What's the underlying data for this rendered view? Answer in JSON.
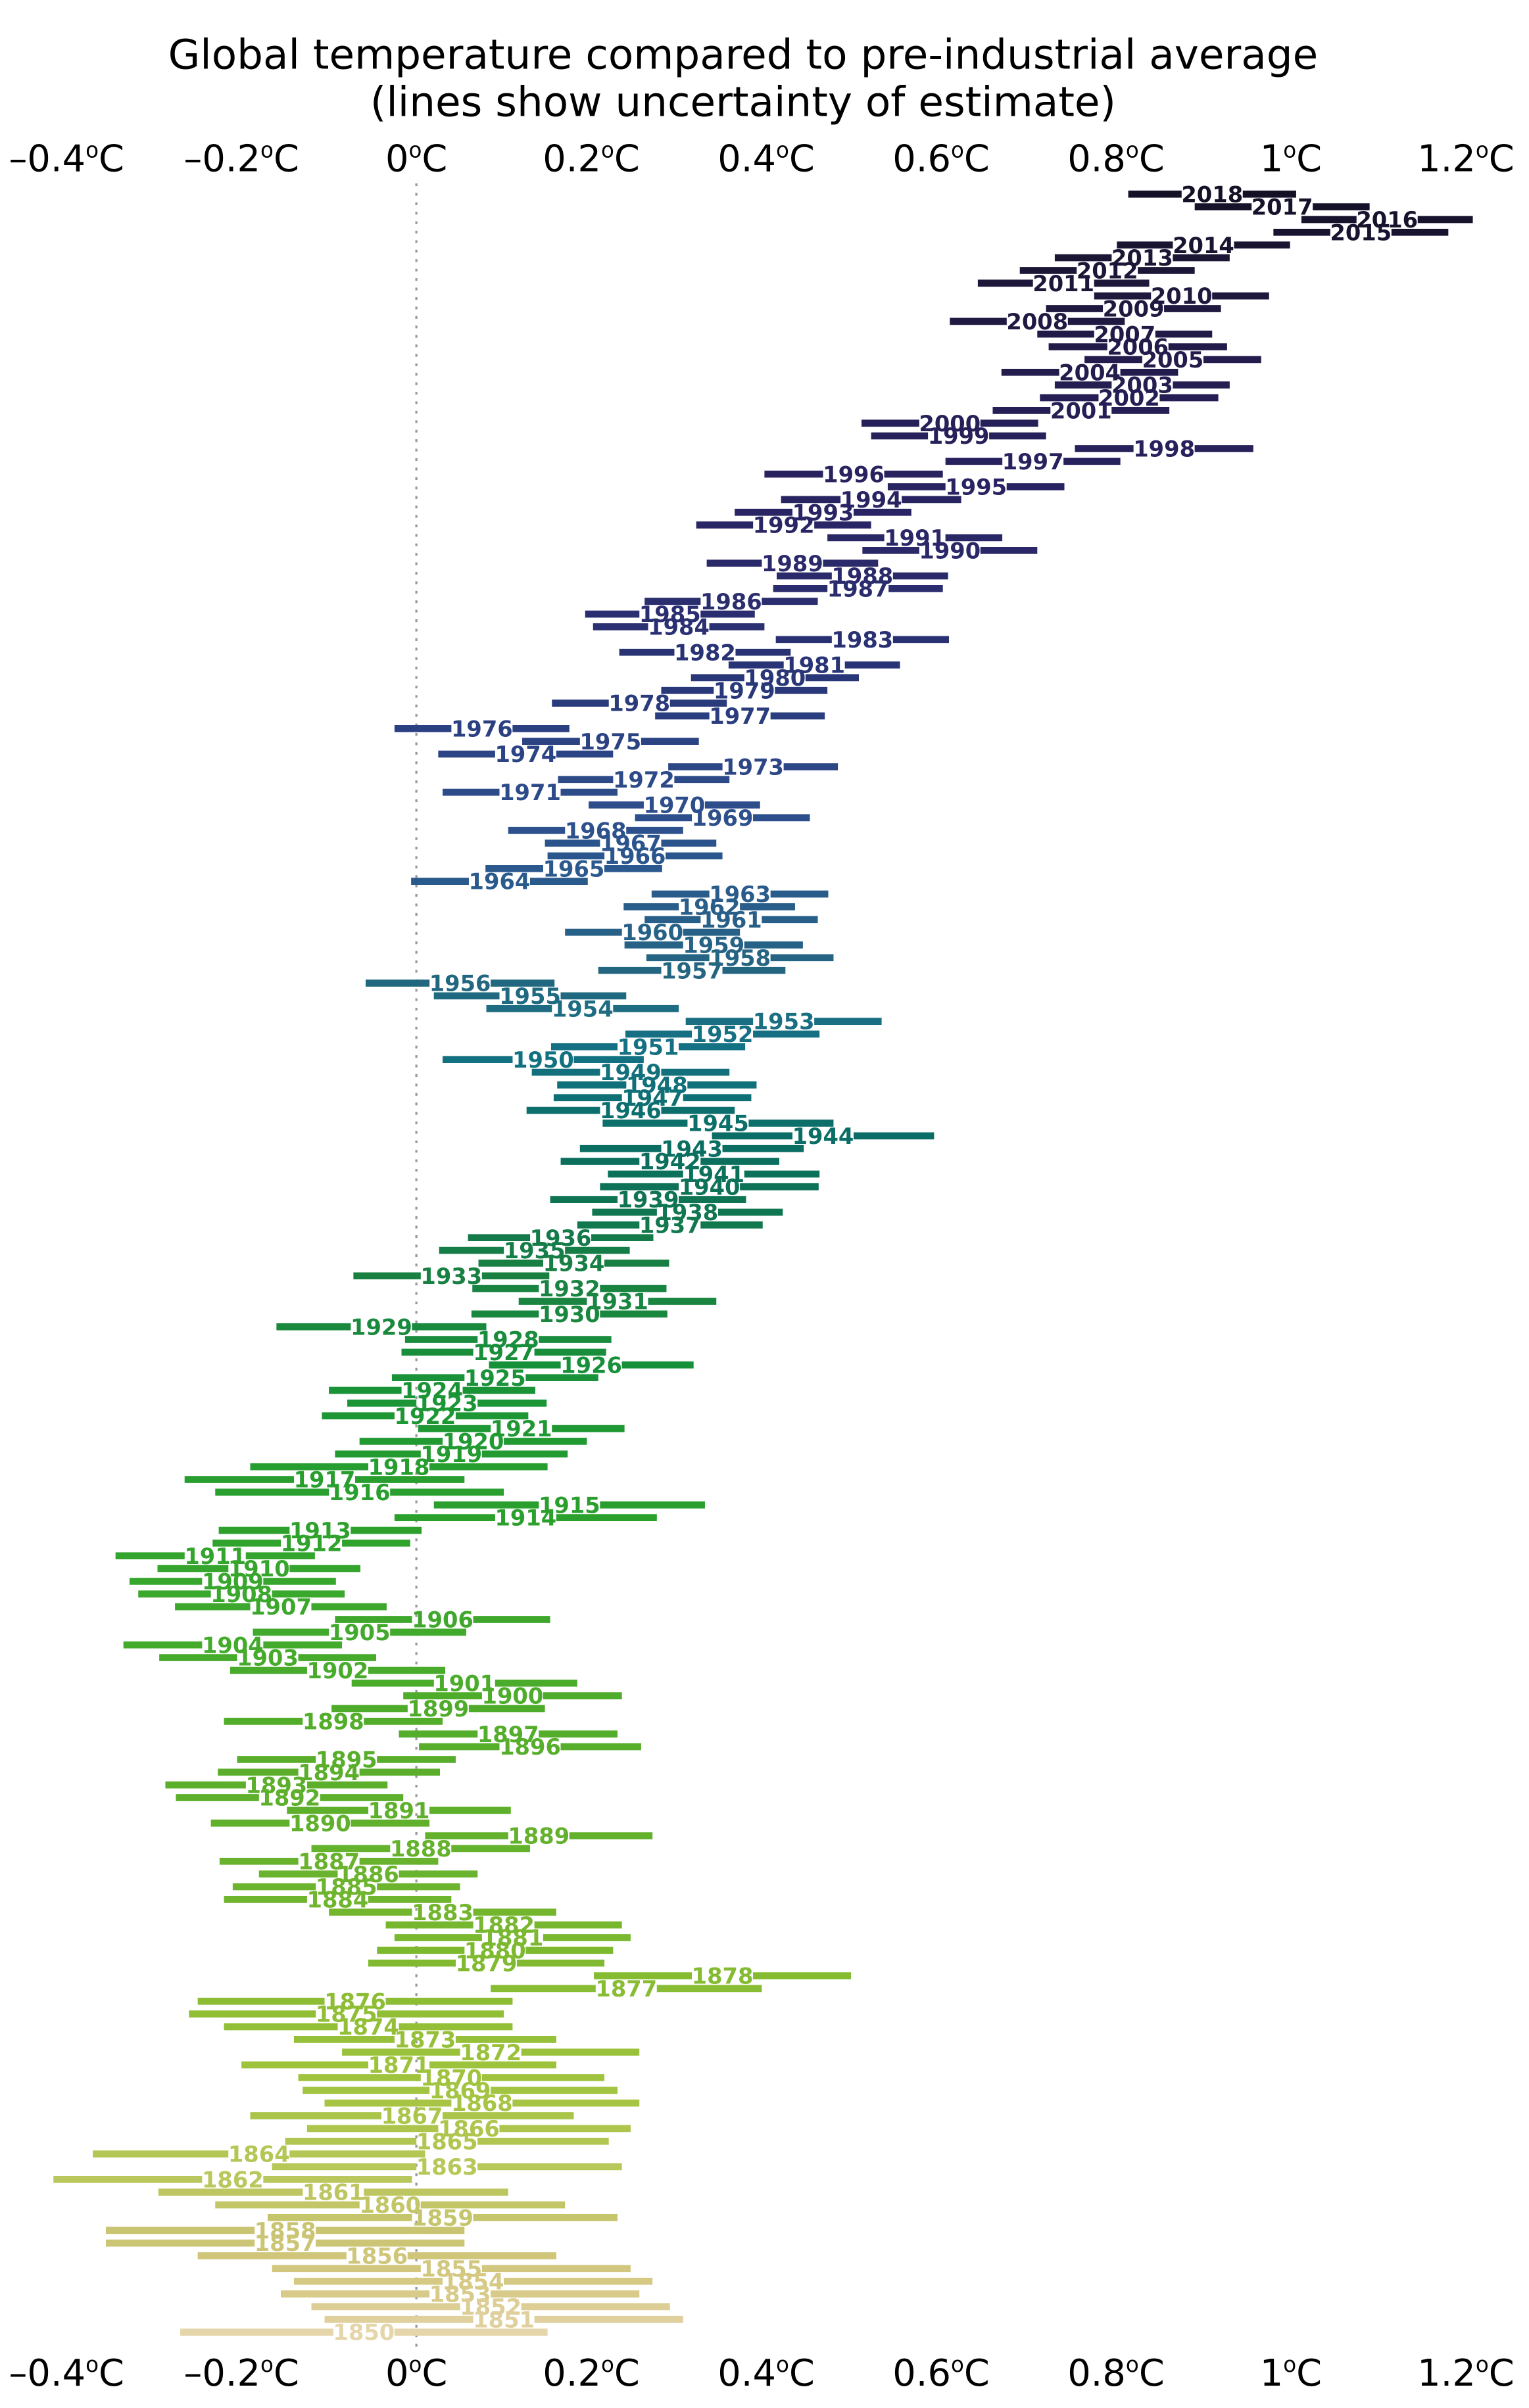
{
  "chart_data": {
    "type": "scatter",
    "variant": "horizontal-uncertainty-interval-plot",
    "title": "Global temperature compared to pre-industrial average",
    "subtitle": "(lines show uncertainty of estimate)",
    "xlabel": "",
    "ylabel": "",
    "unit": "°C",
    "xlim": [
      -0.47,
      1.26
    ],
    "grid": "zero-line-only",
    "zero_line_color": "#999999",
    "background_color": "#ffffff",
    "axis_ticks": [
      {
        "value": -0.4,
        "label": "–0.4"
      },
      {
        "value": -0.2,
        "label": "–0.2"
      },
      {
        "value": 0,
        "label": "0"
      },
      {
        "value": 0.2,
        "label": "0.2"
      },
      {
        "value": 0.4,
        "label": "0.4"
      },
      {
        "value": 0.6,
        "label": "0.6"
      },
      {
        "value": 0.8,
        "label": "0.8"
      },
      {
        "value": 1,
        "label": "1"
      },
      {
        "value": 1.2,
        "label": "1.2"
      }
    ],
    "axis_positions": [
      "top",
      "bottom"
    ],
    "columns": [
      "year",
      "anomaly_c",
      "uncertainty_half_width_c"
    ],
    "points": [
      [
        1850,
        -0.06,
        0.21
      ],
      [
        1851,
        0.1,
        0.205
      ],
      [
        1852,
        0.085,
        0.205
      ],
      [
        1853,
        0.05,
        0.205
      ],
      [
        1854,
        0.065,
        0.205
      ],
      [
        1855,
        0.04,
        0.205
      ],
      [
        1856,
        -0.045,
        0.205
      ],
      [
        1857,
        -0.15,
        0.205
      ],
      [
        1858,
        -0.15,
        0.205
      ],
      [
        1859,
        0.03,
        0.2
      ],
      [
        1860,
        -0.03,
        0.2
      ],
      [
        1861,
        -0.095,
        0.2
      ],
      [
        1862,
        -0.21,
        0.205
      ],
      [
        1863,
        0.035,
        0.2
      ],
      [
        1864,
        -0.18,
        0.19
      ],
      [
        1865,
        0.035,
        0.185
      ],
      [
        1866,
        0.06,
        0.185
      ],
      [
        1867,
        -0.005,
        0.185
      ],
      [
        1868,
        0.075,
        0.18
      ],
      [
        1869,
        0.05,
        0.18
      ],
      [
        1870,
        0.04,
        0.175
      ],
      [
        1871,
        -0.02,
        0.18
      ],
      [
        1872,
        0.085,
        0.17
      ],
      [
        1873,
        0.01,
        0.15
      ],
      [
        1874,
        -0.055,
        0.165
      ],
      [
        1875,
        -0.08,
        0.18
      ],
      [
        1876,
        -0.07,
        0.18
      ],
      [
        1877,
        0.24,
        0.155
      ],
      [
        1878,
        0.35,
        0.147
      ],
      [
        1879,
        0.08,
        0.135
      ],
      [
        1880,
        0.09,
        0.135
      ],
      [
        1881,
        0.11,
        0.135
      ],
      [
        1882,
        0.1,
        0.135
      ],
      [
        1883,
        0.03,
        0.13
      ],
      [
        1884,
        -0.09,
        0.13
      ],
      [
        1885,
        -0.08,
        0.13
      ],
      [
        1886,
        -0.055,
        0.125
      ],
      [
        1887,
        -0.1,
        0.125
      ],
      [
        1888,
        0.005,
        0.125
      ],
      [
        1889,
        0.14,
        0.13
      ],
      [
        1890,
        -0.11,
        0.125
      ],
      [
        1891,
        -0.02,
        0.128
      ],
      [
        1892,
        -0.145,
        0.13
      ],
      [
        1893,
        -0.16,
        0.127
      ],
      [
        1894,
        -0.1,
        0.127
      ],
      [
        1895,
        -0.08,
        0.125
      ],
      [
        1896,
        0.13,
        0.127
      ],
      [
        1897,
        0.105,
        0.125
      ],
      [
        1898,
        -0.095,
        0.125
      ],
      [
        1899,
        0.025,
        0.122
      ],
      [
        1900,
        0.11,
        0.125
      ],
      [
        1901,
        0.055,
        0.129
      ],
      [
        1902,
        -0.09,
        0.123
      ],
      [
        1903,
        -0.17,
        0.124
      ],
      [
        1904,
        -0.21,
        0.125
      ],
      [
        1905,
        -0.065,
        0.122
      ],
      [
        1906,
        0.03,
        0.123
      ],
      [
        1907,
        -0.155,
        0.121
      ],
      [
        1908,
        -0.2,
        0.118
      ],
      [
        1909,
        -0.21,
        0.118
      ],
      [
        1910,
        -0.18,
        0.116
      ],
      [
        1911,
        -0.23,
        0.114
      ],
      [
        1912,
        -0.12,
        0.113
      ],
      [
        1913,
        -0.11,
        0.116
      ],
      [
        1914,
        0.125,
        0.15
      ],
      [
        1915,
        0.175,
        0.155
      ],
      [
        1916,
        -0.065,
        0.165
      ],
      [
        1917,
        -0.105,
        0.16
      ],
      [
        1918,
        -0.02,
        0.17
      ],
      [
        1919,
        0.04,
        0.133
      ],
      [
        1920,
        0.065,
        0.13
      ],
      [
        1921,
        0.12,
        0.118
      ],
      [
        1922,
        0.01,
        0.118
      ],
      [
        1923,
        0.035,
        0.114
      ],
      [
        1924,
        0.018,
        0.118
      ],
      [
        1925,
        0.09,
        0.118
      ],
      [
        1926,
        0.2,
        0.117
      ],
      [
        1927,
        0.1,
        0.117
      ],
      [
        1928,
        0.105,
        0.118
      ],
      [
        1929,
        -0.04,
        0.12
      ],
      [
        1930,
        0.175,
        0.112
      ],
      [
        1931,
        0.23,
        0.113
      ],
      [
        1932,
        0.175,
        0.111
      ],
      [
        1933,
        0.04,
        0.112
      ],
      [
        1934,
        0.18,
        0.109
      ],
      [
        1935,
        0.135,
        0.109
      ],
      [
        1936,
        0.165,
        0.106
      ],
      [
        1937,
        0.29,
        0.106
      ],
      [
        1938,
        0.31,
        0.109
      ],
      [
        1939,
        0.265,
        0.112
      ],
      [
        1940,
        0.335,
        0.125
      ],
      [
        1941,
        0.34,
        0.121
      ],
      [
        1942,
        0.29,
        0.125
      ],
      [
        1943,
        0.315,
        0.128
      ],
      [
        1944,
        0.465,
        0.127
      ],
      [
        1945,
        0.345,
        0.132
      ],
      [
        1946,
        0.245,
        0.119
      ],
      [
        1947,
        0.27,
        0.113
      ],
      [
        1948,
        0.275,
        0.114
      ],
      [
        1949,
        0.245,
        0.113
      ],
      [
        1950,
        0.145,
        0.115
      ],
      [
        1951,
        0.265,
        0.111
      ],
      [
        1952,
        0.35,
        0.111
      ],
      [
        1953,
        0.42,
        0.112
      ],
      [
        1954,
        0.19,
        0.11
      ],
      [
        1955,
        0.13,
        0.11
      ],
      [
        1956,
        0.05,
        0.108
      ],
      [
        1957,
        0.315,
        0.107
      ],
      [
        1958,
        0.37,
        0.107
      ],
      [
        1959,
        0.34,
        0.102
      ],
      [
        1960,
        0.27,
        0.1
      ],
      [
        1961,
        0.36,
        0.099
      ],
      [
        1962,
        0.335,
        0.098
      ],
      [
        1963,
        0.37,
        0.101
      ],
      [
        1964,
        0.095,
        0.101
      ],
      [
        1965,
        0.18,
        0.101
      ],
      [
        1966,
        0.25,
        0.1
      ],
      [
        1967,
        0.245,
        0.098
      ],
      [
        1968,
        0.205,
        0.1
      ],
      [
        1969,
        0.35,
        0.1
      ],
      [
        1970,
        0.295,
        0.098
      ],
      [
        1971,
        0.13,
        0.1
      ],
      [
        1972,
        0.26,
        0.098
      ],
      [
        1973,
        0.385,
        0.097
      ],
      [
        1974,
        0.125,
        0.1
      ],
      [
        1975,
        0.222,
        0.101
      ],
      [
        1976,
        0.075,
        0.1
      ],
      [
        1977,
        0.37,
        0.097
      ],
      [
        1978,
        0.255,
        0.1
      ],
      [
        1979,
        0.375,
        0.095
      ],
      [
        1980,
        0.41,
        0.096
      ],
      [
        1981,
        0.455,
        0.098
      ],
      [
        1982,
        0.33,
        0.098
      ],
      [
        1983,
        0.51,
        0.099
      ],
      [
        1984,
        0.3,
        0.098
      ],
      [
        1985,
        0.29,
        0.097
      ],
      [
        1986,
        0.36,
        0.099
      ],
      [
        1987,
        0.505,
        0.097
      ],
      [
        1988,
        0.51,
        0.098
      ],
      [
        1989,
        0.43,
        0.098
      ],
      [
        1990,
        0.61,
        0.1
      ],
      [
        1991,
        0.57,
        0.1
      ],
      [
        1992,
        0.42,
        0.1
      ],
      [
        1993,
        0.465,
        0.101
      ],
      [
        1994,
        0.52,
        0.103
      ],
      [
        1995,
        0.64,
        0.101
      ],
      [
        1996,
        0.5,
        0.102
      ],
      [
        1997,
        0.705,
        0.1
      ],
      [
        1998,
        0.855,
        0.102
      ],
      [
        1999,
        0.62,
        0.1
      ],
      [
        2000,
        0.61,
        0.101
      ],
      [
        2001,
        0.76,
        0.101
      ],
      [
        2002,
        0.815,
        0.102
      ],
      [
        2003,
        0.83,
        0.1
      ],
      [
        2004,
        0.77,
        0.101
      ],
      [
        2005,
        0.865,
        0.101
      ],
      [
        2006,
        0.825,
        0.102
      ],
      [
        2007,
        0.81,
        0.1
      ],
      [
        2008,
        0.71,
        0.1
      ],
      [
        2009,
        0.82,
        0.1
      ],
      [
        2010,
        0.875,
        0.1
      ],
      [
        2011,
        0.74,
        0.098
      ],
      [
        2012,
        0.79,
        0.1
      ],
      [
        2013,
        0.83,
        0.1
      ],
      [
        2014,
        0.9,
        0.099
      ],
      [
        2015,
        1.08,
        0.1
      ],
      [
        2016,
        1.11,
        0.098
      ],
      [
        2017,
        0.99,
        0.1
      ],
      [
        2018,
        0.91,
        0.096
      ]
    ],
    "row_order": "2018 at top descending to 1850 at bottom",
    "color_stops": [
      {
        "year": 1850,
        "color": "#e5d5ab"
      },
      {
        "year": 1851,
        "color": "#e0d09e"
      },
      {
        "year": 1853,
        "color": "#d8cb8a"
      },
      {
        "year": 1855,
        "color": "#d2c77e"
      },
      {
        "year": 1858,
        "color": "#c9c471"
      },
      {
        "year": 1862,
        "color": "#bac75c"
      },
      {
        "year": 1866,
        "color": "#adc54c"
      },
      {
        "year": 1870,
        "color": "#a0c33e"
      },
      {
        "year": 1875,
        "color": "#90be35"
      },
      {
        "year": 1880,
        "color": "#7db92f"
      },
      {
        "year": 1885,
        "color": "#6db42e"
      },
      {
        "year": 1890,
        "color": "#60b02c"
      },
      {
        "year": 1895,
        "color": "#58ae2b"
      },
      {
        "year": 1900,
        "color": "#4dac2a"
      },
      {
        "year": 1905,
        "color": "#41a92c"
      },
      {
        "year": 1910,
        "color": "#35a52d"
      },
      {
        "year": 1914,
        "color": "#2ba02c"
      },
      {
        "year": 1918,
        "color": "#259d2f"
      },
      {
        "year": 1922,
        "color": "#1d9634"
      },
      {
        "year": 1926,
        "color": "#17903a"
      },
      {
        "year": 1930,
        "color": "#1a873f"
      },
      {
        "year": 1934,
        "color": "#177f43"
      },
      {
        "year": 1937,
        "color": "#12784e"
      },
      {
        "year": 1940,
        "color": "#0d7257"
      },
      {
        "year": 1943,
        "color": "#0b6e62"
      },
      {
        "year": 1946,
        "color": "#0c6f6e"
      },
      {
        "year": 1948,
        "color": "#0f7079"
      },
      {
        "year": 1951,
        "color": "#147183"
      },
      {
        "year": 1954,
        "color": "#1d6c82"
      },
      {
        "year": 1957,
        "color": "#24657f"
      },
      {
        "year": 1960,
        "color": "#276188"
      },
      {
        "year": 1965,
        "color": "#2b588d"
      },
      {
        "year": 1970,
        "color": "#2d4d8b"
      },
      {
        "year": 1975,
        "color": "#2b4283"
      },
      {
        "year": 1980,
        "color": "#293677"
      },
      {
        "year": 1985,
        "color": "#2a2e70"
      },
      {
        "year": 1990,
        "color": "#2a2868"
      },
      {
        "year": 1995,
        "color": "#282361"
      },
      {
        "year": 2000,
        "color": "#262059"
      },
      {
        "year": 2006,
        "color": "#221b49"
      },
      {
        "year": 2012,
        "color": "#1c1737"
      },
      {
        "year": 2018,
        "color": "#141126"
      }
    ]
  }
}
